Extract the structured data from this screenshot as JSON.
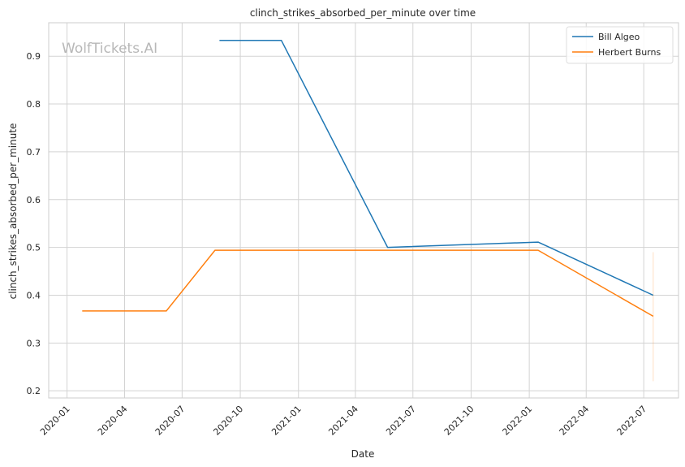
{
  "chart_data": {
    "type": "line",
    "title": "clinch_strikes_absorbed_per_minute over time",
    "xlabel": "Date",
    "ylabel": "clinch_strikes_absorbed_per_minute",
    "watermark": "WolfTickets.AI",
    "x_ticks": [
      "2020-01",
      "2020-04",
      "2020-07",
      "2020-10",
      "2021-01",
      "2021-04",
      "2021-07",
      "2021-10",
      "2022-01",
      "2022-04",
      "2022-07"
    ],
    "y_ticks": [
      "0.2",
      "0.3",
      "0.4",
      "0.5",
      "0.6",
      "0.7",
      "0.8",
      "0.9"
    ],
    "ylim": [
      0.185,
      0.97
    ],
    "xlim": [
      "2019-12-03",
      "2022-08-25"
    ],
    "grid": true,
    "legend_position": "top-right",
    "series": [
      {
        "name": "Bill Algeo",
        "color": "#1f77b4",
        "x": [
          "2020-08-29",
          "2020-12-05",
          "2021-05-22",
          "2022-01-15",
          "2022-07-16"
        ],
        "y": [
          0.933,
          0.933,
          0.5,
          0.511,
          0.4
        ]
      },
      {
        "name": "Herbert Burns",
        "color": "#ff7f0e",
        "x": [
          "2020-01-25",
          "2020-06-06",
          "2020-08-22",
          "2022-01-15",
          "2022-07-16"
        ],
        "y": [
          0.367,
          0.367,
          0.494,
          0.494,
          0.356
        ]
      }
    ]
  }
}
